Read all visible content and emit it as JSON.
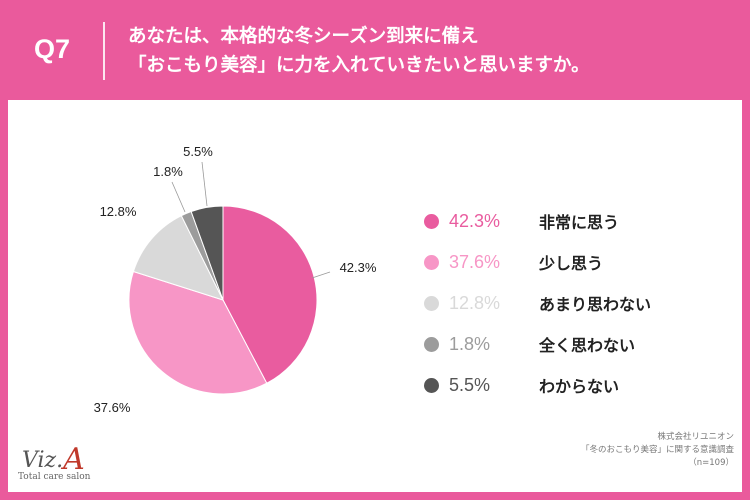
{
  "header": {
    "question_number": "Q7",
    "question_line1": "あなたは、本格的な冬シーズン到来に備え",
    "question_line2": "「おこもり美容」に力を入れていきたいと思いますか。"
  },
  "chart_data": {
    "type": "pie",
    "labels": [
      "非常に思う",
      "少し思う",
      "あまり思わない",
      "全く思わない",
      "わからない"
    ],
    "values": [
      42.3,
      37.6,
      12.8,
      1.8,
      5.5
    ],
    "value_labels": [
      "42.3%",
      "37.6%",
      "12.8%",
      "1.8%",
      "5.5%"
    ],
    "colors": [
      "#e95c9f",
      "#f796c6",
      "#d9d9d9",
      "#9c9c9c",
      "#555555"
    ],
    "legend_text_colors": [
      "#e95c9f",
      "#f796c6",
      "#d9d9d9",
      "#9c9c9c",
      "#555555"
    ],
    "start_angle": "12 o'clock",
    "direction": "clockwise",
    "legend_position": "right"
  },
  "legend": [
    {
      "pct": "42.3%",
      "label": "非常に思う"
    },
    {
      "pct": "37.6%",
      "label": "少し思う"
    },
    {
      "pct": "12.8%",
      "label": "あまり思わない"
    },
    {
      "pct": "1.8%",
      "label": "全く思わない"
    },
    {
      "pct": "5.5%",
      "label": "わからない"
    }
  ],
  "logo": {
    "main": "Viz.",
    "accent": "A",
    "sub": "Total care salon"
  },
  "source": {
    "line1": "株式会社リユニオン",
    "line2": "「冬のおこもり美容」に関する意識調査",
    "line3": "（n=109）"
  }
}
